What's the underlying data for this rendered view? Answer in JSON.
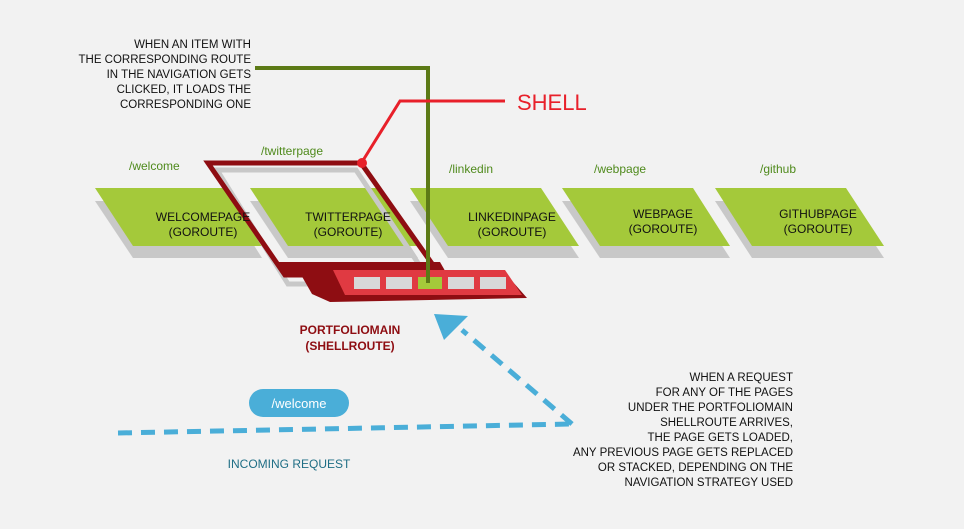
{
  "annotations": {
    "nav_note": [
      "WHEN AN ITEM WITH",
      "THE CORRESPONDING ROUTE",
      "IN THE NAVIGATION GETS",
      "CLICKED, IT LOADS THE",
      "CORRESPONDING ONE"
    ],
    "shell_label": "SHELL",
    "request_note": [
      "WHEN A REQUEST",
      "FOR ANY OF THE PAGES",
      "UNDER THE PORTFOLIOMAIN",
      "SHELLROUTE ARRIVES,",
      "THE PAGE GETS LOADED,",
      "ANY PREVIOUS PAGE GETS REPLACED",
      "OR STACKED, DEPENDING ON THE",
      "NAVIGATION STRATEGY USED"
    ]
  },
  "routes": [
    {
      "path": "/welcome",
      "name": "WELCOMEPAGE",
      "kind": "(GOROUTE)"
    },
    {
      "path": "/twitterpage",
      "name": "TWITTERPAGE",
      "kind": "(GOROUTE)"
    },
    {
      "path": "/linkedin",
      "name": "LINKEDINPAGE",
      "kind": "(GOROUTE)"
    },
    {
      "path": "/webpage",
      "name": "WEBPAGE",
      "kind": "(GOROUTE)"
    },
    {
      "path": "/github",
      "name": "GITHUBPAGE",
      "kind": "(GOROUTE)"
    }
  ],
  "shell": {
    "name": "PORTFOLIOMAIN",
    "kind": "(SHELLROUTE)"
  },
  "request": {
    "pill": "/welcome",
    "label": "INCOMING REQUEST"
  },
  "colors": {
    "background": "#f2f2f2",
    "page_green": "#a4c93a",
    "route_path_green": "#4f8a1c",
    "shadow_gray": "#c8c8c8",
    "shell_red": "#e8202a",
    "shell_dark": "#8e0d12",
    "nav_bar": "#e03a42",
    "olive_line": "#5c7a16",
    "request_blue": "#4aaed8",
    "request_label": "#1f6e85"
  }
}
